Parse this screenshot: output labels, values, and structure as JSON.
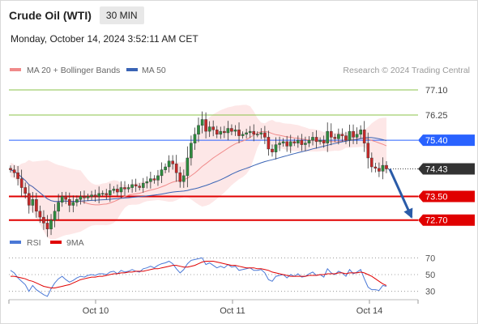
{
  "header": {
    "title": "Crude Oil (WTI)",
    "timeframe": "30 MIN",
    "datetime": "Monday, October 14, 2024 3:52:11 AM CET"
  },
  "legend": {
    "ma20_label": "MA 20 + Bollinger Bands",
    "ma50_label": "MA 50",
    "credit": "Research © 2024 Trading Central",
    "rsi_label": "RSI",
    "ma9_label": "9MA"
  },
  "colors": {
    "ma20": "#f08a8a",
    "ma50": "#3a64b5",
    "bands": "#fde3e3",
    "candle_up": "#2e8b3e",
    "candle_down": "#c62828",
    "level_green": "#8bc34a",
    "level_blue": "#2962ff",
    "level_red": "#e00000",
    "rsi": "#4a78d6",
    "rsi_ma": "#e00000",
    "arrow": "#2a5ba8"
  },
  "chart_data": [
    {
      "type": "candlestick",
      "title": "Crude Oil (WTI)",
      "timeframe": "30 MIN",
      "x_tick_labels": [
        "Oct 10",
        "Oct 11",
        "Oct 14"
      ],
      "ylim": [
        72.2,
        77.4
      ],
      "levels": [
        {
          "value": 77.1,
          "label": "77.10",
          "kind": "resistance",
          "style": "green"
        },
        {
          "value": 76.25,
          "label": "76.25",
          "kind": "resistance",
          "style": "green"
        },
        {
          "value": 75.4,
          "label": "75.40",
          "kind": "pivot",
          "style": "blue"
        },
        {
          "value": 74.43,
          "label": "74.43",
          "kind": "last_price",
          "style": "dark"
        },
        {
          "value": 73.5,
          "label": "73.50",
          "kind": "support",
          "style": "red"
        },
        {
          "value": 72.7,
          "label": "72.70",
          "kind": "support",
          "style": "red"
        }
      ],
      "closes": [
        74.4,
        74.3,
        74.1,
        73.8,
        73.6,
        73.2,
        73.4,
        73.0,
        72.8,
        72.6,
        72.4,
        72.7,
        73.0,
        73.3,
        73.5,
        73.4,
        73.2,
        73.3,
        73.4,
        73.5,
        73.45,
        73.5,
        73.55,
        73.5,
        73.6,
        73.6,
        73.55,
        73.7,
        73.75,
        73.65,
        73.8,
        73.75,
        73.8,
        73.9,
        73.85,
        73.8,
        73.95,
        74.0,
        74.1,
        74.05,
        74.2,
        74.4,
        74.5,
        74.7,
        74.6,
        74.3,
        74.0,
        74.2,
        74.8,
        75.3,
        75.6,
        75.9,
        76.1,
        75.7,
        75.85,
        75.75,
        75.6,
        75.7,
        75.65,
        75.8,
        75.7,
        75.75,
        75.55,
        75.6,
        75.65,
        75.7,
        75.6,
        75.6,
        75.65,
        75.5,
        75.1,
        75.0,
        75.25,
        75.3,
        75.35,
        75.2,
        75.35,
        75.3,
        75.4,
        75.25,
        75.3,
        75.4,
        75.5,
        75.35,
        75.4,
        75.3,
        75.7,
        75.5,
        75.45,
        75.6,
        75.55,
        75.4,
        75.7,
        75.5,
        75.6,
        75.75,
        75.3,
        74.8,
        74.5,
        74.45,
        74.35,
        74.55,
        74.43
      ],
      "ma20_description": "MA 20 with Bollinger Bands (shaded)",
      "ma50_description": "MA 50"
    },
    {
      "type": "line",
      "title": "RSI",
      "series": [
        {
          "name": "RSI",
          "values": [
            55,
            52,
            46,
            42,
            38,
            30,
            37,
            32,
            29,
            26,
            24,
            33,
            40,
            45,
            48,
            44,
            41,
            43,
            46,
            48,
            47,
            49,
            50,
            49,
            51,
            51,
            50,
            53,
            54,
            51,
            55,
            53,
            54,
            56,
            54,
            53,
            57,
            58,
            60,
            58,
            61,
            63,
            64,
            66,
            63,
            57,
            52,
            56,
            63,
            67,
            68,
            69,
            70,
            62,
            64,
            61,
            58,
            60,
            58,
            62,
            59,
            60,
            55,
            56,
            57,
            58,
            55,
            55,
            56,
            52,
            44,
            42,
            48,
            49,
            50,
            46,
            50,
            48,
            51,
            47,
            48,
            51,
            53,
            49,
            50,
            47,
            57,
            52,
            50,
            54,
            52,
            48,
            56,
            51,
            53,
            56,
            45,
            35,
            32,
            32,
            31,
            37,
            36
          ]
        },
        {
          "name": "9MA",
          "values": [
            48,
            48,
            47,
            46,
            45,
            43,
            42,
            40,
            38,
            36,
            35,
            34,
            34,
            35,
            36,
            37,
            38,
            40,
            42,
            44,
            45,
            46,
            47,
            47,
            48,
            48,
            49,
            50,
            51,
            51,
            52,
            52,
            53,
            53,
            54,
            54,
            54,
            55,
            56,
            57,
            57,
            58,
            59,
            60,
            61,
            61,
            60,
            59,
            59,
            60,
            61,
            63,
            65,
            66,
            66,
            66,
            65,
            64,
            63,
            62,
            61,
            61,
            60,
            59,
            58,
            58,
            58,
            57,
            57,
            56,
            55,
            53,
            52,
            51,
            50,
            49,
            48,
            48,
            48,
            48,
            48,
            49,
            49,
            49,
            50,
            50,
            51,
            51,
            51,
            52,
            52,
            51,
            52,
            52,
            52,
            53,
            52,
            50,
            48,
            45,
            42,
            39,
            37
          ]
        }
      ],
      "y_tick_labels": [
        "70",
        "50",
        "30"
      ],
      "ylim": [
        20,
        80
      ],
      "guide_levels": [
        70,
        50,
        30
      ]
    }
  ]
}
